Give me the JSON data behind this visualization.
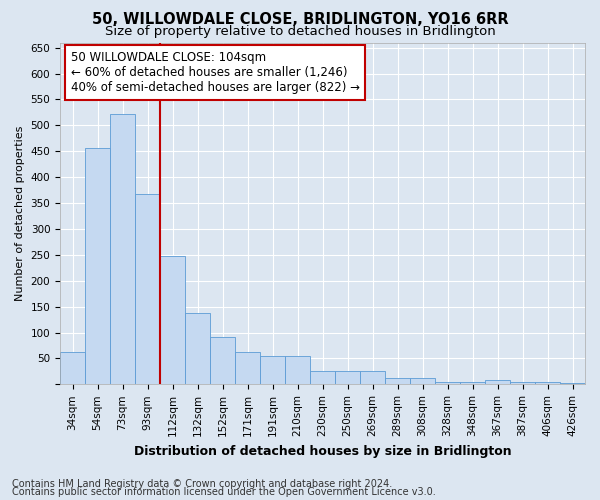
{
  "title": "50, WILLOWDALE CLOSE, BRIDLINGTON, YO16 6RR",
  "subtitle": "Size of property relative to detached houses in Bridlington",
  "xlabel": "Distribution of detached houses by size in Bridlington",
  "ylabel": "Number of detached properties",
  "categories": [
    "34sqm",
    "54sqm",
    "73sqm",
    "93sqm",
    "112sqm",
    "132sqm",
    "152sqm",
    "171sqm",
    "191sqm",
    "210sqm",
    "230sqm",
    "250sqm",
    "269sqm",
    "289sqm",
    "308sqm",
    "328sqm",
    "348sqm",
    "367sqm",
    "387sqm",
    "406sqm",
    "426sqm"
  ],
  "values": [
    62,
    457,
    521,
    368,
    248,
    138,
    91,
    62,
    54,
    54,
    26,
    26,
    26,
    12,
    12,
    5,
    5,
    8,
    5,
    5,
    3
  ],
  "bar_color": "#c5d9f1",
  "bar_edge_color": "#5b9bd5",
  "background_color": "#dce6f1",
  "plot_bg_color": "#dce6f1",
  "grid_color": "#ffffff",
  "vline_color": "#c00000",
  "vline_x_index": 3,
  "annotation_line1": "50 WILLOWDALE CLOSE: 104sqm",
  "annotation_line2": "← 60% of detached houses are smaller (1,246)",
  "annotation_line3": "40% of semi-detached houses are larger (822) →",
  "annotation_box_color": "#ffffff",
  "annotation_box_edge": "#c00000",
  "ylim": [
    0,
    660
  ],
  "yticks": [
    0,
    50,
    100,
    150,
    200,
    250,
    300,
    350,
    400,
    450,
    500,
    550,
    600,
    650
  ],
  "footer1": "Contains HM Land Registry data © Crown copyright and database right 2024.",
  "footer2": "Contains public sector information licensed under the Open Government Licence v3.0.",
  "title_fontsize": 10.5,
  "subtitle_fontsize": 9.5,
  "xlabel_fontsize": 9,
  "ylabel_fontsize": 8,
  "tick_fontsize": 7.5,
  "annotation_fontsize": 8.5,
  "footer_fontsize": 7
}
